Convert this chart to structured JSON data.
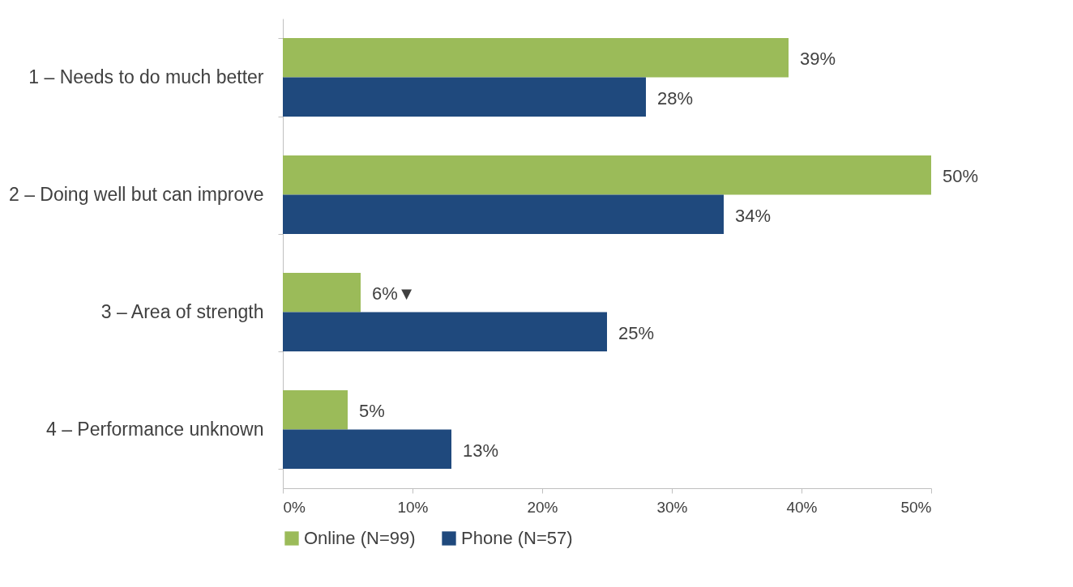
{
  "chart_data": {
    "type": "bar",
    "orientation": "horizontal",
    "categories": [
      "1 – Needs to do much better",
      "2 – Doing well but can improve",
      "3 – Area of strength",
      "4 – Performance unknown"
    ],
    "series": [
      {
        "name": "Online (N=99)",
        "color": "#9bbb59",
        "values": [
          39,
          50,
          6,
          5
        ],
        "value_labels": [
          "39%",
          "50%",
          "6%▼",
          "5%"
        ]
      },
      {
        "name": "Phone (N=57)",
        "color": "#1f497d",
        "values": [
          28,
          34,
          25,
          13
        ],
        "value_labels": [
          "28%",
          "34%",
          "25%",
          "13%"
        ]
      }
    ],
    "xlim": [
      0,
      50
    ],
    "xticks": [
      {
        "value": 0,
        "label": "0%"
      },
      {
        "value": 10,
        "label": "10%"
      },
      {
        "value": 20,
        "label": "20%"
      },
      {
        "value": 30,
        "label": "30%"
      },
      {
        "value": 40,
        "label": "40%"
      },
      {
        "value": 50,
        "label": "50%"
      }
    ],
    "grid": false,
    "legend": "bottom"
  }
}
